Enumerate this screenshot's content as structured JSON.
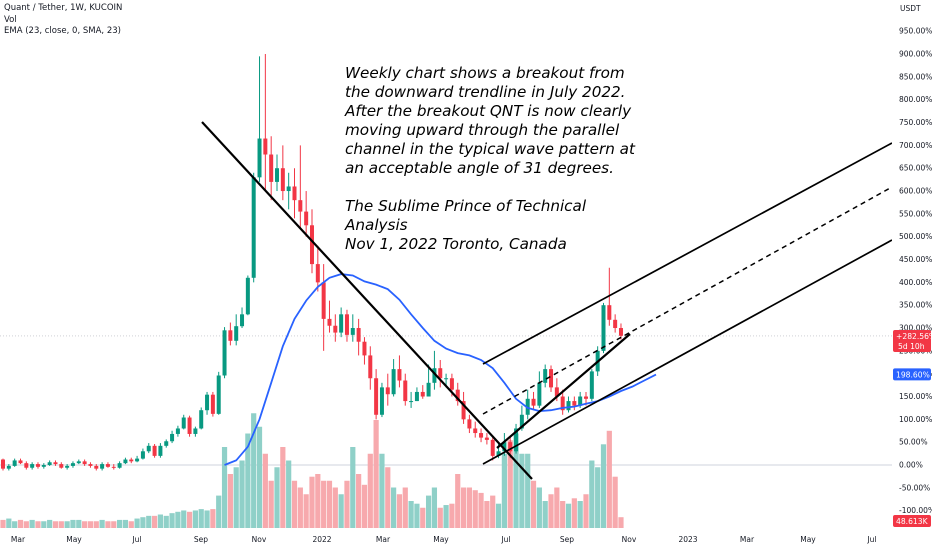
{
  "legend": {
    "title": "Quant / Tether, 1W, KUCOIN",
    "volume": "Vol",
    "ema": "EMA (23, close, 0, SMA, 23)"
  },
  "annotation": {
    "text": "Weekly chart shows a breakout from the downward trendline in July 2022. After the breakout QNT is now clearly moving upward through the parallel channel in the typical wave pattern at an acceptable angle of 31 degrees.\n\nThe Sublime Prince of Technical Analysis\nNov 1, 2022 Toronto, Canada"
  },
  "colors": {
    "up": "#089981",
    "down": "#f23645",
    "vol_up": "#8fd0c8",
    "vol_down": "#f7a9ad",
    "ema": "#2962ff",
    "zero_line": "#cfd3dc"
  },
  "price_axis": {
    "unit_label": "USDT",
    "ticks": [
      "950.00%",
      "900.00%",
      "850.00%",
      "800.00%",
      "750.00%",
      "700.00%",
      "650.00%",
      "600.00%",
      "550.00%",
      "500.00%",
      "450.00%",
      "400.00%",
      "350.00%",
      "300.00%",
      "250.00%",
      "200.00%",
      "150.00%",
      "100.00%",
      "50.00%",
      "0.00%",
      "-50.00%",
      "-100.00%"
    ],
    "badges": {
      "price_pct": "+282.56%",
      "countdown": "5d 10h",
      "ema_pct": "198.60%",
      "volume": "48.613K"
    }
  },
  "time_axis": {
    "ticks": [
      "Mar",
      "May",
      "Jul",
      "Sep",
      "Nov",
      "2022",
      "Mar",
      "May",
      "Jul",
      "Sep",
      "Nov",
      "2023",
      "Mar",
      "May",
      "Jul"
    ]
  },
  "chart_data": {
    "type": "candlestick",
    "symbol": "Quant / Tether",
    "interval": "1W",
    "exchange": "KUCOIN",
    "y_unit": "percent change",
    "ylim": [
      -100,
      950
    ],
    "candles_pct": [
      [
        12,
        -8,
        14,
        -12
      ],
      [
        -8,
        -2,
        2,
        -12
      ],
      [
        -2,
        10,
        14,
        -4
      ],
      [
        10,
        4,
        14,
        2
      ],
      [
        4,
        -6,
        8,
        -10
      ],
      [
        -6,
        2,
        6,
        -10
      ],
      [
        2,
        -4,
        6,
        -8
      ],
      [
        -4,
        0,
        4,
        -8
      ],
      [
        0,
        6,
        10,
        -2
      ],
      [
        6,
        2,
        10,
        -2
      ],
      [
        2,
        -6,
        6,
        -8
      ],
      [
        -6,
        -2,
        2,
        -10
      ],
      [
        -2,
        4,
        8,
        -6
      ],
      [
        4,
        8,
        12,
        2
      ],
      [
        8,
        2,
        12,
        -2
      ],
      [
        2,
        -2,
        6,
        -6
      ],
      [
        -2,
        -8,
        2,
        -12
      ],
      [
        -8,
        2,
        6,
        -12
      ],
      [
        2,
        -4,
        6,
        -6
      ],
      [
        -4,
        -6,
        2,
        -10
      ],
      [
        -6,
        4,
        8,
        -8
      ],
      [
        4,
        12,
        16,
        2
      ],
      [
        12,
        8,
        16,
        4
      ],
      [
        8,
        14,
        20,
        6
      ],
      [
        14,
        30,
        36,
        12
      ],
      [
        30,
        42,
        48,
        26
      ],
      [
        42,
        20,
        46,
        16
      ],
      [
        20,
        42,
        48,
        16
      ],
      [
        42,
        52,
        56,
        38
      ],
      [
        52,
        68,
        75,
        48
      ],
      [
        68,
        80,
        86,
        62
      ],
      [
        80,
        104,
        110,
        78
      ],
      [
        104,
        68,
        108,
        62
      ],
      [
        68,
        80,
        84,
        62
      ],
      [
        80,
        120,
        126,
        78
      ],
      [
        120,
        154,
        160,
        110
      ],
      [
        154,
        112,
        160,
        106
      ],
      [
        112,
        196,
        204,
        110
      ],
      [
        196,
        295,
        302,
        190
      ],
      [
        295,
        272,
        312,
        262
      ],
      [
        272,
        304,
        330,
        262
      ],
      [
        304,
        330,
        345,
        300
      ],
      [
        330,
        410,
        415,
        328
      ],
      [
        410,
        630,
        640,
        400
      ],
      [
        630,
        715,
        895,
        620
      ],
      [
        715,
        680,
        900,
        600
      ],
      [
        680,
        620,
        720,
        580
      ],
      [
        620,
        650,
        680,
        600
      ],
      [
        650,
        600,
        700,
        580
      ],
      [
        600,
        610,
        640,
        560
      ],
      [
        610,
        580,
        650,
        540
      ],
      [
        580,
        555,
        700,
        520
      ],
      [
        555,
        525,
        600,
        500
      ],
      [
        525,
        440,
        560,
        420
      ],
      [
        440,
        400,
        480,
        380
      ],
      [
        400,
        320,
        440,
        250
      ],
      [
        320,
        305,
        360,
        290
      ],
      [
        305,
        290,
        330,
        270
      ],
      [
        290,
        330,
        345,
        280
      ],
      [
        330,
        285,
        340,
        270
      ],
      [
        285,
        300,
        330,
        270
      ],
      [
        300,
        270,
        320,
        240
      ],
      [
        270,
        240,
        280,
        220
      ],
      [
        240,
        190,
        260,
        165
      ],
      [
        190,
        110,
        210,
        100
      ],
      [
        110,
        170,
        180,
        105
      ],
      [
        170,
        155,
        200,
        130
      ],
      [
        155,
        210,
        232,
        150
      ],
      [
        210,
        185,
        240,
        170
      ],
      [
        185,
        140,
        200,
        130
      ],
      [
        140,
        140,
        160,
        125
      ],
      [
        140,
        160,
        170,
        140
      ],
      [
        160,
        150,
        175,
        145
      ],
      [
        150,
        180,
        220,
        150
      ],
      [
        180,
        212,
        250,
        165
      ],
      [
        212,
        190,
        230,
        170
      ],
      [
        190,
        190,
        200,
        170
      ],
      [
        190,
        165,
        200,
        150
      ],
      [
        165,
        140,
        180,
        130
      ],
      [
        140,
        100,
        160,
        90
      ],
      [
        100,
        80,
        110,
        70
      ],
      [
        80,
        70,
        95,
        60
      ],
      [
        70,
        60,
        80,
        50
      ],
      [
        60,
        55,
        70,
        45
      ],
      [
        55,
        20,
        60,
        10
      ],
      [
        20,
        30,
        50,
        15
      ],
      [
        30,
        50,
        70,
        20
      ],
      [
        50,
        30,
        60,
        15
      ],
      [
        30,
        80,
        90,
        25
      ],
      [
        80,
        110,
        130,
        75
      ],
      [
        110,
        145,
        165,
        100
      ],
      [
        145,
        130,
        160,
        120
      ],
      [
        130,
        180,
        205,
        125
      ],
      [
        180,
        210,
        220,
        170
      ],
      [
        210,
        170,
        218,
        160
      ],
      [
        170,
        150,
        190,
        140
      ],
      [
        150,
        120,
        165,
        110
      ],
      [
        120,
        140,
        150,
        115
      ],
      [
        140,
        130,
        150,
        120
      ],
      [
        130,
        150,
        160,
        125
      ],
      [
        150,
        145,
        160,
        130
      ],
      [
        145,
        205,
        210,
        140
      ],
      [
        205,
        250,
        260,
        195
      ],
      [
        250,
        350,
        355,
        245
      ],
      [
        350,
        318,
        432,
        305
      ],
      [
        318,
        300,
        330,
        290
      ],
      [
        300,
        283,
        310,
        275
      ]
    ],
    "volume_relative": [
      0.06,
      0.07,
      0.05,
      0.06,
      0.05,
      0.06,
      0.05,
      0.05,
      0.06,
      0.05,
      0.05,
      0.05,
      0.06,
      0.06,
      0.05,
      0.05,
      0.05,
      0.06,
      0.05,
      0.05,
      0.06,
      0.06,
      0.05,
      0.07,
      0.08,
      0.09,
      0.09,
      0.1,
      0.09,
      0.11,
      0.12,
      0.13,
      0.12,
      0.13,
      0.14,
      0.13,
      0.14,
      0.24,
      0.6,
      0.4,
      0.45,
      0.5,
      0.7,
      0.85,
      0.75,
      0.55,
      0.35,
      0.45,
      0.6,
      0.5,
      0.35,
      0.3,
      0.25,
      0.38,
      0.4,
      0.35,
      0.35,
      0.3,
      0.25,
      0.35,
      0.6,
      0.4,
      0.32,
      0.55,
      0.8,
      0.55,
      0.45,
      0.3,
      0.25,
      0.3,
      0.2,
      0.18,
      0.15,
      0.24,
      0.3,
      0.15,
      0.17,
      0.18,
      0.4,
      0.3,
      0.3,
      0.28,
      0.26,
      0.2,
      0.24,
      0.18,
      0.55,
      0.65,
      0.7,
      0.55,
      0.55,
      0.35,
      0.3,
      0.2,
      0.25,
      0.3,
      0.2,
      0.18,
      0.22,
      0.2,
      0.25,
      0.5,
      0.45,
      0.62,
      0.72,
      0.38,
      0.08
    ],
    "ema_23_pct": [
      [
        38,
        0
      ],
      [
        40,
        10
      ],
      [
        42,
        40
      ],
      [
        44,
        100
      ],
      [
        46,
        180
      ],
      [
        48,
        260
      ],
      [
        50,
        320
      ],
      [
        52,
        360
      ],
      [
        54,
        390
      ],
      [
        56,
        410
      ],
      [
        58,
        418
      ],
      [
        60,
        415
      ],
      [
        62,
        402
      ],
      [
        64,
        395
      ],
      [
        66,
        385
      ],
      [
        68,
        362
      ],
      [
        70,
        330
      ],
      [
        72,
        300
      ],
      [
        74,
        272
      ],
      [
        76,
        255
      ],
      [
        78,
        245
      ],
      [
        80,
        240
      ],
      [
        82,
        230
      ],
      [
        84,
        212
      ],
      [
        86,
        180
      ],
      [
        88,
        145
      ],
      [
        90,
        125
      ],
      [
        92,
        118
      ],
      [
        94,
        120
      ],
      [
        96,
        125
      ],
      [
        98,
        128
      ],
      [
        100,
        134
      ],
      [
        102,
        140
      ],
      [
        104,
        150
      ],
      [
        106,
        162
      ],
      [
        108,
        172
      ],
      [
        110,
        185
      ],
      [
        112,
        198
      ]
    ],
    "latest": {
      "price_pct": 282.56,
      "ema_pct": 198.6,
      "volume": "48.613K"
    }
  }
}
